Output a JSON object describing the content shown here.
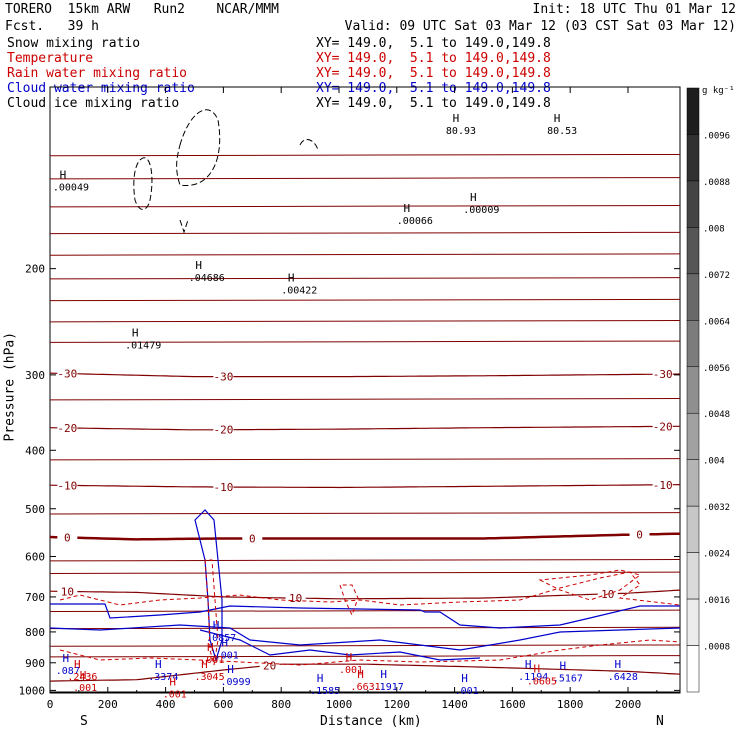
{
  "header": {
    "model": "TORERO  15km ARW   Run2    NCAR/MMM",
    "fcst": "Fcst.   39 h",
    "init": "Init: 18 UTC Thu 01 Mar 12",
    "valid": "Valid: 09 UTC Sat 03 Mar 12 (03 CST Sat 03 Mar 12)"
  },
  "legend": [
    {
      "name": "Snow mixing ratio",
      "xy": "",
      "color": "#000000"
    },
    {
      "name": "Temperature",
      "xy": "XY= 149.0,  5.1 to 149.0,149.8",
      "color": "#cc0000"
    },
    {
      "name": "Rain water mixing ratio",
      "xy": "XY= 149.0,  5.1 to 149.0,149.8",
      "color": "#cc0000"
    },
    {
      "name": "Cloud water mixing ratio",
      "xy": "XY= 149.0,  5.1 to 149.0,149.8",
      "color": "#0000cc"
    },
    {
      "name": "Cloud ice mixing ratio",
      "xy": "XY= 149.0,  5.1 to 149.0,149.8",
      "color": "#000000"
    }
  ],
  "snow_xy": "XY= 149.0,  5.1 to 149.0,149.8",
  "colorbar": {
    "unit": "g kg⁻¹",
    "labels": [
      ".0096",
      ".0088",
      ".008",
      ".0072",
      ".0064",
      ".0056",
      ".0048",
      ".004",
      ".0032",
      ".0024",
      ".0016",
      ".0008"
    ]
  },
  "axis_ends": {
    "left": "S",
    "right": "N"
  },
  "chart_data": {
    "type": "cross-section contour",
    "xlabel": "Distance (km)",
    "ylabel": "Pressure (hPa)",
    "xlim": [
      0,
      2180
    ],
    "ylim": [
      1010,
      100
    ],
    "y_log": true,
    "xticks": [
      0,
      200,
      400,
      600,
      800,
      1000,
      1200,
      1400,
      1600,
      1800,
      2000
    ],
    "yticks": [
      200,
      300,
      400,
      500,
      600,
      700,
      800,
      900,
      1000
    ],
    "temperature_isotherms": [
      {
        "label": "-30",
        "x": [
          0,
          500,
          1000,
          1500,
          2180
        ],
        "p": [
          298,
          302,
          302,
          301,
          299
        ]
      },
      {
        "label": "-20",
        "x": [
          0,
          500,
          1000,
          1500,
          2180
        ],
        "p": [
          367,
          370,
          369,
          367,
          365
        ]
      },
      {
        "label": "-10",
        "x": [
          0,
          500,
          1000,
          1500,
          2180
        ],
        "p": [
          457,
          460,
          461,
          459,
          456
        ]
      },
      {
        "label": "0",
        "x": [
          0,
          300,
          600,
          1000,
          1500,
          2000,
          2180
        ],
        "p": [
          557,
          562,
          560,
          560,
          560,
          552,
          550
        ]
      },
      {
        "label": "10",
        "x": [
          0,
          300,
          600,
          1000,
          1500,
          2000,
          2180
        ],
        "p": [
          685,
          688,
          700,
          705,
          703,
          690,
          682
        ]
      },
      {
        "label": "20",
        "x": [
          0,
          300,
          600,
          800,
          1100,
          1500,
          2000,
          2180
        ],
        "p": [
          965,
          960,
          925,
          905,
          905,
          915,
          930,
          940
        ]
      }
    ],
    "unlabeled_isotherm_pressures": [
      130,
      142,
      158,
      175,
      190,
      208,
      226,
      245,
      265,
      330,
      415,
      510,
      610,
      640,
      740,
      790,
      845,
      880
    ],
    "ice_maxima": [
      {
        "label": ".04686",
        "x": 480,
        "p": 205
      },
      {
        "label": ".01479",
        "x": 260,
        "p": 265
      },
      {
        "label": ".00422",
        "x": 800,
        "p": 215
      },
      {
        "label": ".00066",
        "x": 1200,
        "p": 165
      },
      {
        "label": ".00009",
        "x": 1430,
        "p": 158
      },
      {
        "label": ".00049",
        "x": 10,
        "p": 145
      }
    ],
    "snow_maxima": [
      {
        "label": "80.93",
        "x": 1370,
        "p": 117
      },
      {
        "label": "80.53",
        "x": 1720,
        "p": 117
      }
    ],
    "cloud_water_maxima": [
      {
        "label": ".0857",
        "x": 540,
        "p": 810
      },
      {
        "label": ".3374",
        "x": 340,
        "p": 940
      },
      {
        "label": ".0999",
        "x": 590,
        "p": 958
      },
      {
        "label": ".1585",
        "x": 900,
        "p": 990
      },
      {
        "label": ".1917",
        "x": 1120,
        "p": 975
      },
      {
        "label": ".1194",
        "x": 1620,
        "p": 940
      },
      {
        "label": ".5167",
        "x": 1740,
        "p": 945
      },
      {
        "label": ".6428",
        "x": 1930,
        "p": 940
      },
      {
        "label": ".087",
        "x": 20,
        "p": 918
      },
      {
        "label": ".001",
        "x": 570,
        "p": 865
      },
      {
        "label": ".001",
        "x": 1400,
        "p": 990
      }
    ],
    "rain_maxima": [
      {
        "label": ".2436",
        "x": 60,
        "p": 940
      },
      {
        "label": ".3045",
        "x": 500,
        "p": 940
      },
      {
        "label": ".6631",
        "x": 1040,
        "p": 975
      },
      {
        "label": ".0605",
        "x": 1650,
        "p": 955
      },
      {
        "label": ".001",
        "x": 520,
        "p": 880
      },
      {
        "label": ".001",
        "x": 1000,
        "p": 915
      },
      {
        "label": ".001",
        "x": 80,
        "p": 980
      },
      {
        "label": ".001",
        "x": 390,
        "p": 1005
      }
    ]
  }
}
